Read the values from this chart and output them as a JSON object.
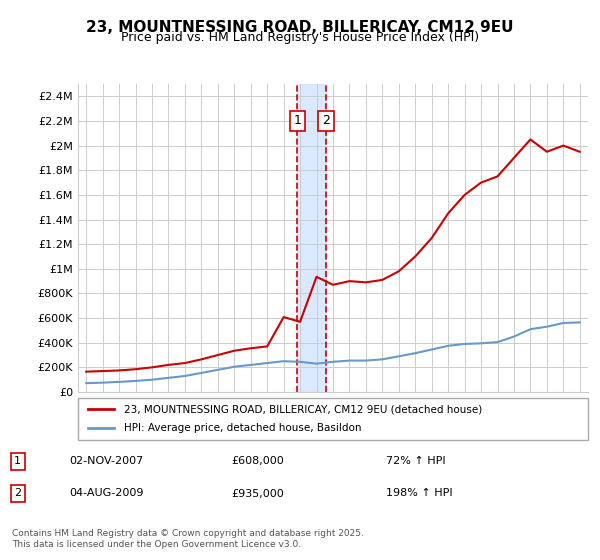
{
  "title": "23, MOUNTNESSING ROAD, BILLERICAY, CM12 9EU",
  "subtitle": "Price paid vs. HM Land Registry's House Price Index (HPI)",
  "ylabel_ticks": [
    "£0",
    "£200K",
    "£400K",
    "£600K",
    "£800K",
    "£1M",
    "£1.2M",
    "£1.4M",
    "£1.6M",
    "£1.8M",
    "£2M",
    "£2.2M",
    "£2.4M"
  ],
  "ytick_values": [
    0,
    200000,
    400000,
    600000,
    800000,
    1000000,
    1200000,
    1400000,
    1600000,
    1800000,
    2000000,
    2200000,
    2400000
  ],
  "ylim": [
    0,
    2500000
  ],
  "xlim": [
    1994.5,
    2025.5
  ],
  "marker1_x": 2007.83,
  "marker2_x": 2009.58,
  "marker1_label": "1",
  "marker2_label": "2",
  "marker1_price": 608000,
  "marker2_price": 935000,
  "legend_line1": "23, MOUNTNESSING ROAD, BILLERICAY, CM12 9EU (detached house)",
  "legend_line2": "HPI: Average price, detached house, Basildon",
  "table_row1": [
    "1",
    "02-NOV-2007",
    "£608,000",
    "72% ↑ HPI"
  ],
  "table_row2": [
    "2",
    "04-AUG-2009",
    "£935,000",
    "198% ↑ HPI"
  ],
  "footer": "Contains HM Land Registry data © Crown copyright and database right 2025.\nThis data is licensed under the Open Government Licence v3.0.",
  "line_color_red": "#cc0000",
  "line_color_blue": "#6699cc",
  "marker_box_color": "#cc0000",
  "shaded_color": "#cce0ff",
  "grid_color": "#cccccc",
  "bg_color": "#ffffff",
  "hpi_years": [
    1995,
    1996,
    1997,
    1998,
    1999,
    2000,
    2001,
    2002,
    2003,
    2004,
    2005,
    2006,
    2007,
    2008,
    2009,
    2010,
    2011,
    2012,
    2013,
    2014,
    2015,
    2016,
    2017,
    2018,
    2019,
    2020,
    2021,
    2022,
    2023,
    2024,
    2025
  ],
  "hpi_values": [
    72000,
    76000,
    82000,
    90000,
    100000,
    115000,
    130000,
    155000,
    180000,
    205000,
    220000,
    235000,
    250000,
    245000,
    230000,
    245000,
    255000,
    255000,
    265000,
    290000,
    315000,
    345000,
    375000,
    390000,
    395000,
    405000,
    450000,
    510000,
    530000,
    560000,
    565000
  ],
  "price_years": [
    1995,
    1996,
    1997,
    1998,
    1999,
    2000,
    2001,
    2002,
    2003,
    2004,
    2005,
    2006,
    2007,
    2008,
    2009,
    2010,
    2011,
    2012,
    2013,
    2014,
    2015,
    2016,
    2017,
    2018,
    2019,
    2020,
    2021,
    2022,
    2023,
    2024,
    2025
  ],
  "price_values": [
    165000,
    170000,
    175000,
    185000,
    200000,
    220000,
    235000,
    265000,
    300000,
    335000,
    355000,
    370000,
    608000,
    570000,
    935000,
    870000,
    900000,
    890000,
    910000,
    980000,
    1100000,
    1250000,
    1450000,
    1600000,
    1700000,
    1750000,
    1900000,
    2050000,
    1950000,
    2000000,
    1950000
  ]
}
